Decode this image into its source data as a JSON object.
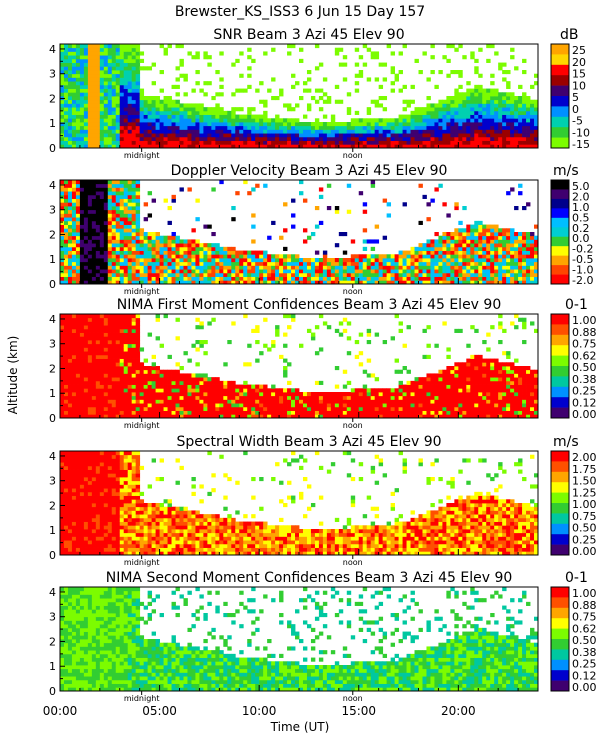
{
  "figure": {
    "title": "Brewster_KS_ISS3   6 Jun 15 Day 157",
    "ylabel": "Altitude (km)",
    "xlabel": "Time (UT)",
    "x_ticks": [
      "00:00",
      "05:00",
      "10:00",
      "15:00",
      "20:00"
    ],
    "x_marker_labels": [
      "midnight",
      "noon"
    ]
  },
  "chart_data": [
    {
      "type": "heatmap",
      "title": "SNR Beam 3 Azi  45 Elev 90",
      "units": "dB",
      "xlim": [
        0,
        24
      ],
      "ylim": [
        0,
        4.2
      ],
      "y_ticks": [
        "0",
        "1",
        "2",
        "3",
        "4"
      ],
      "colorbar": {
        "labels": [
          "25",
          "20",
          "15",
          "10",
          "5",
          "0",
          "-5",
          "-10",
          "-15"
        ],
        "colors": [
          "#ffa500",
          "#ffd700",
          "#ff0000",
          "#9b0000",
          "#3f006f",
          "#0000cd",
          "#0090ff",
          "#00d0b0",
          "#32cd32",
          "#7cfc00"
        ]
      }
    },
    {
      "type": "heatmap",
      "title": "Doppler Velocity Beam 3 Azi  45 Elev 90",
      "units": "m/s",
      "xlim": [
        0,
        24
      ],
      "ylim": [
        0,
        4.2
      ],
      "y_ticks": [
        "0",
        "1",
        "2",
        "3",
        "4"
      ],
      "colorbar": {
        "labels": [
          "5.0",
          "2.0",
          "1.0",
          "0.5",
          "0.2",
          "0.0",
          "-0.2",
          "-0.5",
          "-1.0",
          "-2.0"
        ],
        "colors": [
          "#000000",
          "#3f006f",
          "#00008b",
          "#0000ff",
          "#00bfff",
          "#00ced1",
          "#32cd32",
          "#ffff00",
          "#ffa500",
          "#ff4500",
          "#ff0000"
        ]
      }
    },
    {
      "type": "heatmap",
      "title": "NIMA First Moment Confidences Beam 3 Azi  45 Elev 90",
      "units": "0-1",
      "xlim": [
        0,
        24
      ],
      "ylim": [
        0,
        4.2
      ],
      "y_ticks": [
        "0",
        "1",
        "2",
        "3",
        "4"
      ],
      "colorbar": {
        "labels": [
          "1.00",
          "0.88",
          "0.75",
          "0.62",
          "0.50",
          "0.38",
          "0.25",
          "0.12",
          "0.00"
        ],
        "colors": [
          "#ff0000",
          "#ff5000",
          "#ffa500",
          "#ffff00",
          "#7cfc00",
          "#32cd32",
          "#00c8a0",
          "#0090ff",
          "#0000cd",
          "#3f006f"
        ]
      }
    },
    {
      "type": "heatmap",
      "title": "Spectral Width Beam 3 Azi  45 Elev 90",
      "units": "m/s",
      "xlim": [
        0,
        24
      ],
      "ylim": [
        0,
        4.2
      ],
      "y_ticks": [
        "0",
        "1",
        "2",
        "3",
        "4"
      ],
      "colorbar": {
        "labels": [
          "2.00",
          "1.75",
          "1.50",
          "1.25",
          "1.00",
          "0.75",
          "0.50",
          "0.25",
          "0.00"
        ],
        "colors": [
          "#ff0000",
          "#ff5000",
          "#ffa500",
          "#ffff00",
          "#7cfc00",
          "#32cd32",
          "#00c8a0",
          "#0090ff",
          "#0000cd",
          "#3f006f"
        ]
      }
    },
    {
      "type": "heatmap",
      "title": "NIMA Second Moment Confidences Beam 3 Azi  45 Elev 90",
      "units": "0-1",
      "xlim": [
        0,
        24
      ],
      "ylim": [
        0,
        4.2
      ],
      "y_ticks": [
        "0",
        "1",
        "2",
        "3",
        "4"
      ],
      "colorbar": {
        "labels": [
          "1.00",
          "0.88",
          "0.75",
          "0.62",
          "0.50",
          "0.38",
          "0.25",
          "0.12",
          "0.00"
        ],
        "colors": [
          "#ff0000",
          "#ff5000",
          "#ffa500",
          "#ffff00",
          "#7cfc00",
          "#32cd32",
          "#00c8a0",
          "#0090ff",
          "#0000cd",
          "#3f006f"
        ]
      }
    }
  ]
}
